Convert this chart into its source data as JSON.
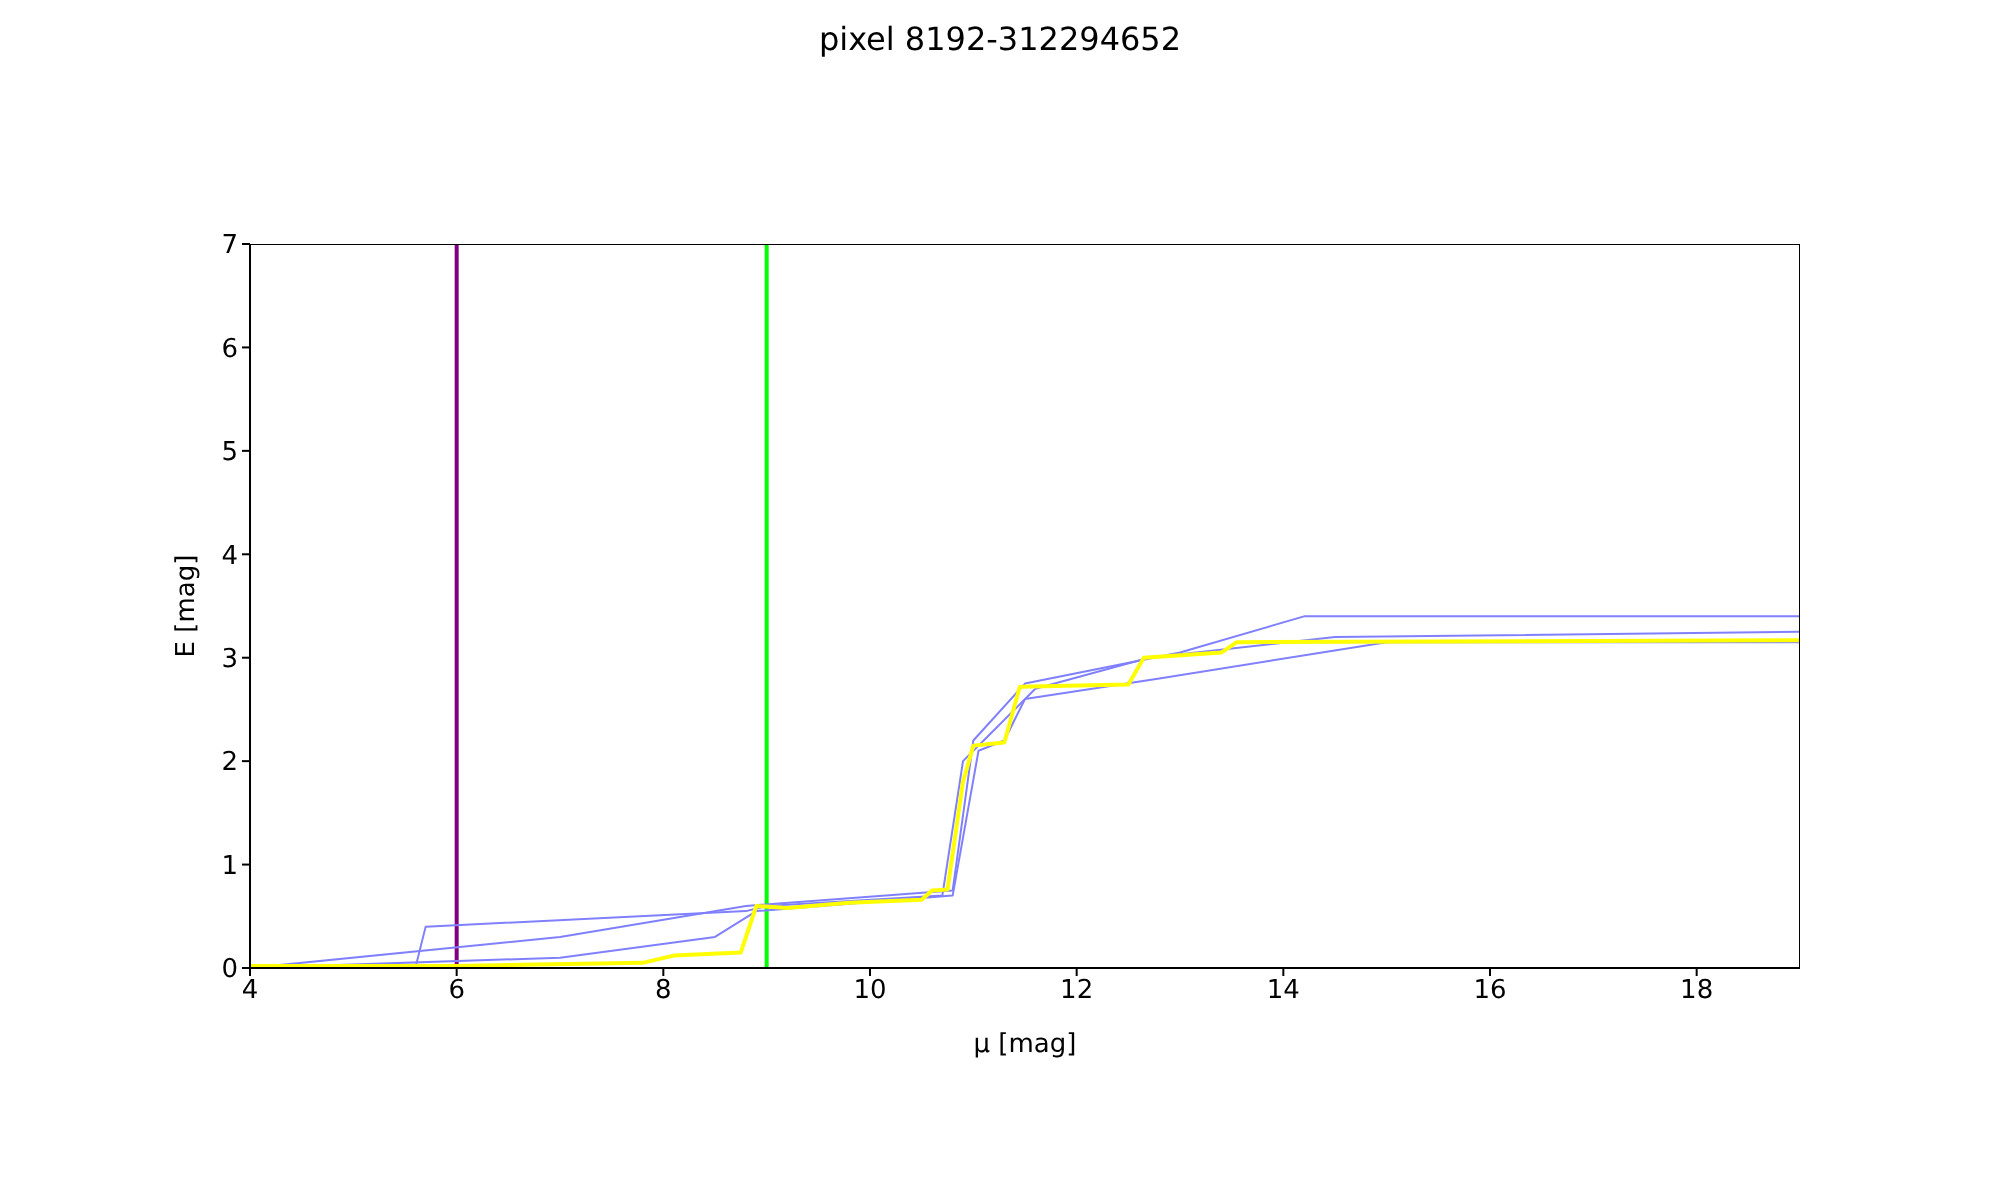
{
  "chart_data": {
    "type": "line",
    "title": "pixel 8192-312294652",
    "xlabel": "μ [mag]",
    "ylabel": "E [mag]",
    "xlim": [
      4,
      19
    ],
    "xticks": [
      4,
      6,
      8,
      10,
      12,
      14,
      16,
      18
    ],
    "ylim": [
      0,
      7
    ],
    "yticks": [
      0,
      1,
      2,
      3,
      4,
      5,
      6,
      7
    ],
    "grid": false,
    "marker": "none",
    "line_style": "solid",
    "series": [
      {
        "color": "#8080ff",
        "x": [
          4,
          5.6,
          5.7,
          8.8,
          9,
          10.7,
          10.9,
          11.1,
          11.6,
          12.7,
          14.5,
          19
        ],
        "values": [
          0,
          0,
          0.4,
          0.55,
          0.6,
          0.7,
          2.0,
          2.2,
          2.7,
          3.0,
          3.2,
          3.25
        ]
      },
      {
        "color": "#8080ff",
        "x": [
          4,
          7,
          8.5,
          8.9,
          10.8,
          11.05,
          11.3,
          11.5,
          12.8,
          15,
          19
        ],
        "values": [
          0,
          0.1,
          0.3,
          0.55,
          0.7,
          2.1,
          2.2,
          2.6,
          2.8,
          3.15,
          3.15
        ]
      },
      {
        "color": "#8080ff",
        "x": [
          4,
          7,
          8.8,
          10.8,
          11.0,
          11.5,
          13,
          14.2,
          19
        ],
        "values": [
          0,
          0.3,
          0.6,
          0.75,
          2.2,
          2.75,
          3.05,
          3.4,
          3.4
        ]
      },
      {
        "color": "#ffff00",
        "x": [
          4,
          6,
          7.8,
          8.1,
          8.75,
          8.9,
          9.2,
          9.8,
          10.5,
          10.6,
          10.75,
          10.9,
          11.0,
          11.3,
          11.45,
          12.5,
          12.65,
          13.4,
          13.55,
          19
        ],
        "values": [
          0.02,
          0.02,
          0.05,
          0.12,
          0.15,
          0.6,
          0.58,
          0.63,
          0.66,
          0.75,
          0.76,
          1.8,
          2.15,
          2.18,
          2.72,
          2.74,
          3.0,
          3.05,
          3.15,
          3.17
        ]
      }
    ],
    "ref_lines": [
      {
        "axis": "x",
        "value": 6,
        "color": "#800080"
      },
      {
        "axis": "x",
        "value": 9,
        "color": "#00ff00"
      }
    ]
  }
}
